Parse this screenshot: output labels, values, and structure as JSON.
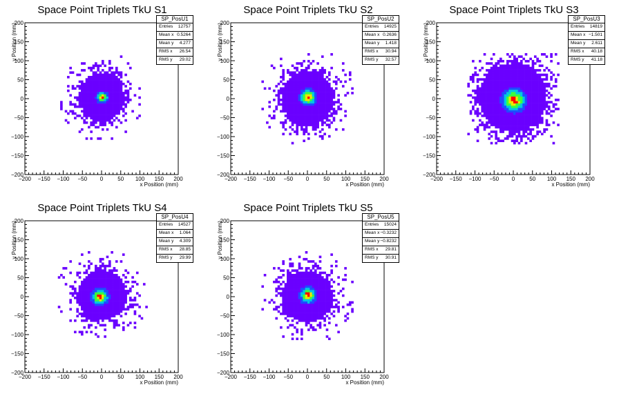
{
  "colors": {
    "purple": "#6a00ff",
    "blue": "#1e4cff",
    "cyan": "#00c8e0",
    "green": "#3cff3c",
    "yellow": "#f0e600",
    "red": "#ff0000"
  },
  "chart_data": [
    {
      "type": "heatmap",
      "title": "Space Point Triplets TkU S1",
      "xlabel": "x Position (mm)",
      "ylabel": "y Position (mm)",
      "xlim": [
        -200,
        200
      ],
      "ylim": [
        -200,
        200
      ],
      "xticks": [
        "−200",
        "−150",
        "−100",
        "−50",
        "0",
        "50",
        "100",
        "150",
        "200"
      ],
      "yticks": [
        "−200",
        "−150",
        "−100",
        "−50",
        "0",
        "50",
        "100",
        "150",
        "200"
      ],
      "stats": {
        "name": "SP_PosU1",
        "rows": [
          {
            "label": "Entries",
            "value": "12757"
          },
          {
            "label": "Mean x",
            "value": "0.5264"
          },
          {
            "label": "Mean y",
            "value": "4.277"
          },
          {
            "label": "RMS x",
            "value": "26.54"
          },
          {
            "label": "RMS y",
            "value": "29.02"
          }
        ]
      },
      "distribution": {
        "entries": 12757,
        "mean_x": 0.5264,
        "mean_y": 4.277,
        "rms_x": 26.54,
        "rms_y": 29.02,
        "core": "narrow",
        "peak_x": 2,
        "peak_y": 4
      }
    },
    {
      "type": "heatmap",
      "title": "Space Point Triplets TkU S2",
      "xlabel": "x Position (mm)",
      "ylabel": "y Position (mm)",
      "xlim": [
        -200,
        200
      ],
      "ylim": [
        -200,
        200
      ],
      "xticks": [
        "−200",
        "−150",
        "−100",
        "−50",
        "0",
        "50",
        "100",
        "150",
        "200"
      ],
      "yticks": [
        "−200",
        "−150",
        "−100",
        "−50",
        "0",
        "50",
        "100",
        "150",
        "200"
      ],
      "stats": {
        "name": "SP_PosU2",
        "rows": [
          {
            "label": "Entries",
            "value": "14925"
          },
          {
            "label": "Mean x",
            "value": "0.2636"
          },
          {
            "label": "Mean y",
            "value": "1.418"
          },
          {
            "label": "RMS x",
            "value": "30.94"
          },
          {
            "label": "RMS y",
            "value": "32.57"
          }
        ]
      },
      "distribution": {
        "entries": 14925,
        "mean_x": 0.2636,
        "mean_y": 1.418,
        "rms_x": 30.94,
        "rms_y": 32.57,
        "core": "medium",
        "peak_x": 2,
        "peak_y": 4
      }
    },
    {
      "type": "heatmap",
      "title": "Space Point Triplets TkU S3",
      "xlabel": "x Position (mm)",
      "ylabel": "y Position (mm)",
      "xlim": [
        -200,
        200
      ],
      "ylim": [
        -200,
        200
      ],
      "xticks": [
        "−200",
        "−150",
        "−100",
        "−50",
        "0",
        "50",
        "100",
        "150",
        "200"
      ],
      "yticks": [
        "−200",
        "−150",
        "−100",
        "−50",
        "0",
        "50",
        "100",
        "150",
        "200"
      ],
      "stats": {
        "name": "SP_PosU3",
        "rows": [
          {
            "label": "Entries",
            "value": "14819"
          },
          {
            "label": "Mean x",
            "value": "−1.501"
          },
          {
            "label": "Mean y",
            "value": "2.611"
          },
          {
            "label": "RMS x",
            "value": "40.18"
          },
          {
            "label": "RMS y",
            "value": "41.18"
          }
        ]
      },
      "distribution": {
        "entries": 14819,
        "mean_x": -1.501,
        "mean_y": 2.611,
        "rms_x": 40.18,
        "rms_y": 41.18,
        "core": "wide",
        "peak_x": 2,
        "peak_y": -4
      }
    },
    {
      "type": "heatmap",
      "title": "Space Point Triplets TkU S4",
      "xlabel": "x Position (mm)",
      "ylabel": "y Position (mm)",
      "xlim": [
        -200,
        200
      ],
      "ylim": [
        -200,
        200
      ],
      "xticks": [
        "−200",
        "−150",
        "−100",
        "−50",
        "0",
        "50",
        "100",
        "150",
        "200"
      ],
      "yticks": [
        "−200",
        "−150",
        "−100",
        "−50",
        "0",
        "50",
        "100",
        "150",
        "200"
      ],
      "stats": {
        "name": "SP_PosU4",
        "rows": [
          {
            "label": "Entries",
            "value": "14527"
          },
          {
            "label": "Mean x",
            "value": "1.064"
          },
          {
            "label": "Mean y",
            "value": "4.309"
          },
          {
            "label": "RMS x",
            "value": "28.85"
          },
          {
            "label": "RMS y",
            "value": "29.99"
          }
        ]
      },
      "distribution": {
        "entries": 14527,
        "mean_x": 1.064,
        "mean_y": 4.309,
        "rms_x": 28.85,
        "rms_y": 29.99,
        "core": "medium",
        "peak_x": -4,
        "peak_y": 0
      }
    },
    {
      "type": "heatmap",
      "title": "Space Point Triplets TkU S5",
      "xlabel": "x Position (mm)",
      "ylabel": "y Position (mm)",
      "xlim": [
        -200,
        200
      ],
      "ylim": [
        -200,
        200
      ],
      "xticks": [
        "−200",
        "−150",
        "−100",
        "−50",
        "0",
        "50",
        "100",
        "150",
        "200"
      ],
      "yticks": [
        "−200",
        "−150",
        "−100",
        "−50",
        "0",
        "50",
        "100",
        "150",
        "200"
      ],
      "stats": {
        "name": "SP_PosU5",
        "rows": [
          {
            "label": "Entries",
            "value": "15024"
          },
          {
            "label": "Mean x",
            "value": "−0.3232"
          },
          {
            "label": "Mean y",
            "value": "−0.8232"
          },
          {
            "label": "RMS x",
            "value": "29.81"
          },
          {
            "label": "RMS y",
            "value": "30.91"
          }
        ]
      },
      "distribution": {
        "entries": 15024,
        "mean_x": -0.3232,
        "mean_y": -0.8232,
        "rms_x": 29.81,
        "rms_y": 30.91,
        "core": "medium",
        "peak_x": 2,
        "peak_y": 4
      }
    }
  ]
}
